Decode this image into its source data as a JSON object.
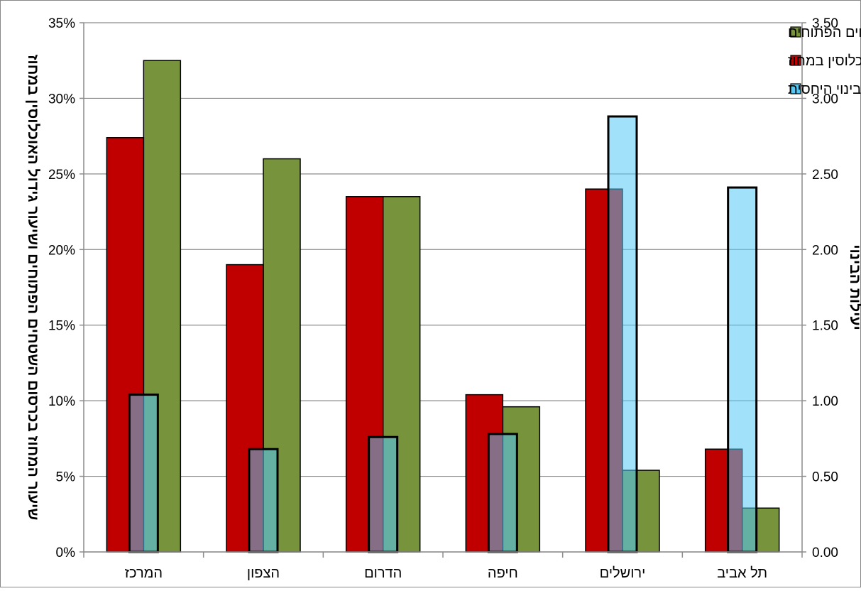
{
  "chart_data": {
    "type": "bar",
    "categories": [
      "המרכז",
      "הצפון",
      "הדרום",
      "חיפה",
      "ירושלים",
      "תל אביב"
    ],
    "series": [
      {
        "name": "שיעור המחוז בכרסום השטחים הפתוחים",
        "axis": "left",
        "color": "#77933C",
        "values": [
          0.325,
          0.26,
          0.235,
          0.096,
          0.054,
          0.029
        ]
      },
      {
        "name": "גידול האוכלוסין במחוז",
        "axis": "left",
        "color": "#C00000",
        "values": [
          0.274,
          0.19,
          0.235,
          0.104,
          0.24,
          0.068
        ]
      },
      {
        "name": "יעילות הבינוי היחסית",
        "axis": "right",
        "color": "#56C8F5",
        "values": [
          1.04,
          0.68,
          0.76,
          0.78,
          2.88,
          2.41
        ]
      }
    ],
    "y_left": {
      "label": "שיעור המחוז בכרסום השטחים הפתוחים ושיעור גידול האוכלוסין במחוז",
      "min": 0,
      "max": 0.35,
      "ticks": [
        0,
        0.05,
        0.1,
        0.15,
        0.2,
        0.25,
        0.3,
        0.35
      ],
      "tick_labels": [
        "0%",
        "5%",
        "10%",
        "15%",
        "20%",
        "25%",
        "30%",
        "35%"
      ]
    },
    "y_right": {
      "label": "יעילות הבינוי",
      "min": 0,
      "max": 3.5,
      "ticks": [
        0,
        0.5,
        1,
        1.5,
        2,
        2.5,
        3,
        3.5
      ],
      "tick_labels": [
        "0.00",
        "0.50",
        "1.00",
        "1.50",
        "2.00",
        "2.50",
        "3.00",
        "3.50"
      ]
    },
    "grid": true,
    "legend_position": "top-right"
  }
}
